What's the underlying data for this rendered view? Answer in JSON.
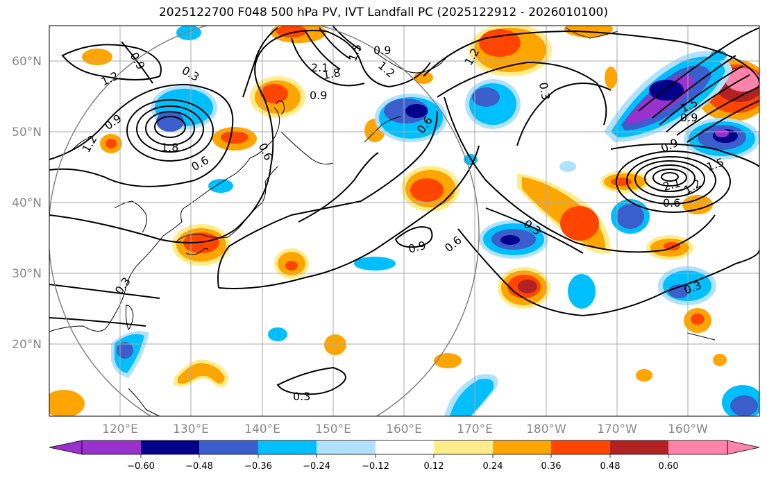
{
  "title": "2025122700 F048 500 hPa PV, IVT Landfall PC (2025122912 - 2026010100)",
  "lat_labels": [
    "60°N",
    "50°N",
    "40°N",
    "30°N",
    "20°N"
  ],
  "lon_labels": [
    "120°E",
    "130°E",
    "140°E",
    "150°E",
    "160°E",
    "170°E",
    "180°W",
    "170°W",
    "160°W"
  ],
  "colorbar": {
    "ticks": [
      "−0.60",
      "−0.48",
      "−0.36",
      "−0.24",
      "−0.12",
      "0.12",
      "0.24",
      "0.36",
      "0.48",
      "0.60"
    ],
    "colors": [
      "#9932CC",
      "#00008B",
      "#3A5FCD",
      "#00BFFF",
      "#B0E2FF",
      "#FFFFFF",
      "#FFEC8B",
      "#FFA500",
      "#FF4500",
      "#B22222",
      "#FF82AB"
    ]
  },
  "contour_labels": [
    "0.9",
    "1.2",
    "0.3",
    "0.9",
    "1.8",
    "1.2",
    "0.6",
    "2.1",
    "1.8",
    "1.5",
    "0.9",
    "1.2",
    "0.6",
    "0.9",
    "0.3",
    "1.2",
    "1.5",
    "0.9",
    "0.9",
    "1.5",
    "2.1",
    "1.2",
    "0.6",
    "0.3",
    "0.9",
    "0.6",
    "0.3",
    "0.3",
    "0.3",
    "0.6"
  ]
}
